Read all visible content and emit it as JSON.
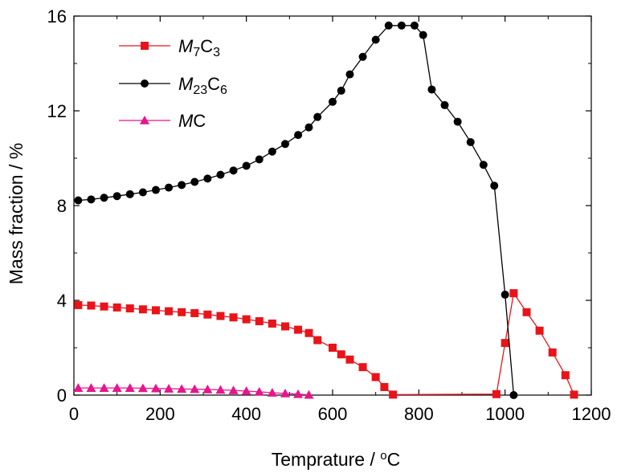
{
  "chart_data": {
    "type": "line",
    "title": "",
    "xlabel": {
      "text": "Temprature / ",
      "sup": "o",
      "unit": "C"
    },
    "ylabel": "Mass fraction / %",
    "xlim": [
      0,
      1200
    ],
    "ylim": [
      0,
      16
    ],
    "xticks": [
      0,
      200,
      400,
      600,
      800,
      1000,
      1200
    ],
    "yticks": [
      0,
      4,
      8,
      12,
      16
    ],
    "grid": false,
    "legend_position": "top-left",
    "series": [
      {
        "name": "M7C3",
        "label_parts": [
          [
            "M",
            "ital"
          ],
          [
            "7",
            "sub"
          ],
          [
            "C",
            ""
          ],
          [
            "3",
            "sub"
          ]
        ],
        "color": "#e8141a",
        "marker": "square",
        "points": [
          [
            10,
            3.8
          ],
          [
            40,
            3.78
          ],
          [
            70,
            3.74
          ],
          [
            100,
            3.7
          ],
          [
            130,
            3.66
          ],
          [
            160,
            3.62
          ],
          [
            190,
            3.58
          ],
          [
            220,
            3.54
          ],
          [
            250,
            3.5
          ],
          [
            280,
            3.46
          ],
          [
            310,
            3.4
          ],
          [
            340,
            3.34
          ],
          [
            370,
            3.28
          ],
          [
            400,
            3.2
          ],
          [
            430,
            3.12
          ],
          [
            460,
            3.02
          ],
          [
            490,
            2.9
          ],
          [
            520,
            2.76
          ],
          [
            545,
            2.62
          ],
          [
            565,
            2.32
          ],
          [
            600,
            2.0
          ],
          [
            620,
            1.72
          ],
          [
            640,
            1.5
          ],
          [
            670,
            1.18
          ],
          [
            700,
            0.76
          ],
          [
            720,
            0.34
          ],
          [
            740,
            0.02
          ],
          [
            980,
            0.04
          ],
          [
            1000,
            2.2
          ],
          [
            1020,
            4.3
          ],
          [
            1050,
            3.5
          ],
          [
            1080,
            2.72
          ],
          [
            1110,
            1.8
          ],
          [
            1140,
            0.84
          ],
          [
            1160,
            0.02
          ]
        ]
      },
      {
        "name": "M23C6",
        "label_parts": [
          [
            "M",
            "ital"
          ],
          [
            "23",
            "sub"
          ],
          [
            "C",
            ""
          ],
          [
            "6",
            "sub"
          ]
        ],
        "color": "#000000",
        "marker": "circle",
        "points": [
          [
            10,
            8.22
          ],
          [
            40,
            8.26
          ],
          [
            70,
            8.33
          ],
          [
            100,
            8.4
          ],
          [
            130,
            8.48
          ],
          [
            160,
            8.56
          ],
          [
            190,
            8.66
          ],
          [
            220,
            8.76
          ],
          [
            250,
            8.87
          ],
          [
            280,
            9.0
          ],
          [
            310,
            9.14
          ],
          [
            340,
            9.3
          ],
          [
            370,
            9.48
          ],
          [
            400,
            9.68
          ],
          [
            430,
            9.95
          ],
          [
            460,
            10.28
          ],
          [
            490,
            10.6
          ],
          [
            520,
            10.98
          ],
          [
            545,
            11.3
          ],
          [
            565,
            11.74
          ],
          [
            600,
            12.38
          ],
          [
            620,
            12.85
          ],
          [
            640,
            13.54
          ],
          [
            670,
            14.28
          ],
          [
            700,
            15.0
          ],
          [
            730,
            15.6
          ],
          [
            760,
            15.6
          ],
          [
            790,
            15.6
          ],
          [
            810,
            15.2
          ],
          [
            830,
            12.9
          ],
          [
            860,
            12.24
          ],
          [
            890,
            11.54
          ],
          [
            920,
            10.68
          ],
          [
            950,
            9.72
          ],
          [
            975,
            8.84
          ],
          [
            1000,
            4.24
          ],
          [
            1020,
            0.0
          ]
        ]
      },
      {
        "name": "MC",
        "label_parts": [
          [
            "M",
            "ital"
          ],
          [
            "C",
            ""
          ]
        ],
        "color": "#e6168c",
        "marker": "triangle",
        "points": [
          [
            10,
            0.3
          ],
          [
            40,
            0.3
          ],
          [
            70,
            0.3
          ],
          [
            100,
            0.3
          ],
          [
            130,
            0.3
          ],
          [
            160,
            0.29
          ],
          [
            190,
            0.28
          ],
          [
            220,
            0.27
          ],
          [
            250,
            0.26
          ],
          [
            280,
            0.25
          ],
          [
            310,
            0.24
          ],
          [
            340,
            0.22
          ],
          [
            370,
            0.2
          ],
          [
            400,
            0.17
          ],
          [
            430,
            0.14
          ],
          [
            460,
            0.1
          ],
          [
            490,
            0.07
          ],
          [
            520,
            0.04
          ],
          [
            545,
            0.01
          ]
        ]
      }
    ]
  }
}
